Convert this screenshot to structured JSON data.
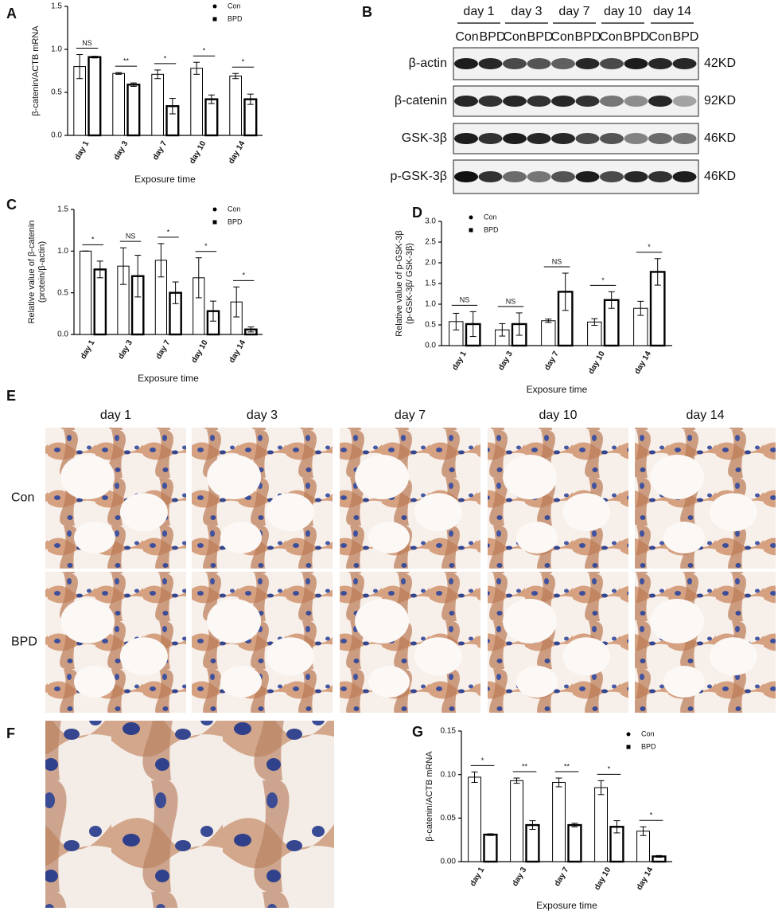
{
  "chart_data": [
    {
      "type": "bar",
      "panel": "A",
      "ylabel": [
        "β-catenin/ACTB mRNA"
      ],
      "xlabel": "Exposure time",
      "categories": [
        "day 1",
        "day 3",
        "day 7",
        "day 10",
        "day 14"
      ],
      "series": [
        {
          "name": "Con",
          "color": "#000000",
          "marker": "circle",
          "values": [
            0.8,
            0.72,
            0.71,
            0.78,
            0.69
          ],
          "errors": [
            0.14,
            0.01,
            0.05,
            0.07,
            0.03
          ]
        },
        {
          "name": "BPD",
          "color": "#000000",
          "marker": "square",
          "values": [
            0.91,
            0.59,
            0.34,
            0.42,
            0.42
          ],
          "errors": [
            0.01,
            0.02,
            0.09,
            0.05,
            0.06
          ]
        }
      ],
      "significance": [
        "NS",
        "**",
        "*",
        "*",
        "*"
      ],
      "ylim": [
        0,
        1.5
      ],
      "yticks": [
        {
          "value": 0,
          "label": "0.0"
        },
        {
          "value": 0.5,
          "label": "0.5"
        },
        {
          "value": 1,
          "label": "1.0"
        },
        {
          "value": 1.5,
          "label": "1.5"
        }
      ]
    },
    {
      "type": "bar",
      "panel": "C",
      "ylabel": [
        "Relative value of β-catenin",
        "(protein/β-actin)"
      ],
      "xlabel": "Exposure time",
      "categories": [
        "day 1",
        "day 3",
        "day 7",
        "day 10",
        "day 14"
      ],
      "series": [
        {
          "name": "Con",
          "color": "#000000",
          "marker": "circle",
          "values": [
            1.0,
            0.82,
            0.89,
            0.68,
            0.39
          ],
          "errors": [
            0.0,
            0.22,
            0.2,
            0.24,
            0.18
          ]
        },
        {
          "name": "BPD",
          "color": "#000000",
          "marker": "square",
          "values": [
            0.78,
            0.7,
            0.5,
            0.28,
            0.06
          ],
          "errors": [
            0.1,
            0.25,
            0.13,
            0.12,
            0.03
          ]
        }
      ],
      "significance": [
        "*",
        "NS",
        "*",
        "*",
        "*"
      ],
      "ylim": [
        0,
        1.5
      ],
      "yticks": [
        {
          "value": 0,
          "label": "0.0"
        },
        {
          "value": 0.5,
          "label": "0.5"
        },
        {
          "value": 1,
          "label": "1.0"
        },
        {
          "value": 1.5,
          "label": "1.5"
        }
      ]
    },
    {
      "type": "bar",
      "panel": "D",
      "ylabel": [
        "Relative value of p-GSK-3β",
        "(p-GSK-3β/ GSK-3β)"
      ],
      "xlabel": "Exposure time",
      "categories": [
        "day 1",
        "day 3",
        "day 7",
        "day 10",
        "day 14"
      ],
      "series": [
        {
          "name": "Con",
          "color": "#000000",
          "marker": "circle",
          "values": [
            0.58,
            0.38,
            0.6,
            0.57,
            0.9
          ],
          "errors": [
            0.2,
            0.15,
            0.04,
            0.08,
            0.17
          ]
        },
        {
          "name": "BPD",
          "color": "#000000",
          "marker": "square",
          "values": [
            0.52,
            0.52,
            1.3,
            1.1,
            1.78
          ],
          "errors": [
            0.3,
            0.27,
            0.45,
            0.2,
            0.32
          ]
        }
      ],
      "significance": [
        "NS",
        "NS",
        "NS",
        "*",
        "*"
      ],
      "ylim": [
        0,
        3
      ],
      "yticks": [
        {
          "value": 0,
          "label": "0.0"
        },
        {
          "value": 0.5,
          "label": "0.5"
        },
        {
          "value": 1,
          "label": "1.0"
        },
        {
          "value": 1.5,
          "label": "1.5"
        },
        {
          "value": 2,
          "label": "2.0"
        },
        {
          "value": 2.5,
          "label": "2.5"
        },
        {
          "value": 3,
          "label": "3.0"
        }
      ]
    },
    {
      "type": "bar",
      "panel": "G",
      "ylabel": [
        "β-catenin/ACTB mRNA"
      ],
      "xlabel": "Exposure time",
      "categories": [
        "day 1",
        "day 3",
        "day 7",
        "day 10",
        "day 14"
      ],
      "series": [
        {
          "name": "Con",
          "color": "#000000",
          "marker": "circle",
          "values": [
            0.097,
            0.093,
            0.091,
            0.085,
            0.035
          ],
          "errors": [
            0.006,
            0.003,
            0.005,
            0.008,
            0.005
          ]
        },
        {
          "name": "BPD",
          "color": "#000000",
          "marker": "square",
          "values": [
            0.031,
            0.042,
            0.042,
            0.04,
            0.006
          ],
          "errors": [
            0.001,
            0.005,
            0.002,
            0.007,
            0.001
          ]
        }
      ],
      "significance": [
        "*",
        "**",
        "**",
        "*",
        "*"
      ],
      "ylim": [
        0,
        0.15
      ],
      "yticks": [
        {
          "value": 0,
          "label": "0.00"
        },
        {
          "value": 0.05,
          "label": "0.05"
        },
        {
          "value": 0.1,
          "label": "0.10"
        },
        {
          "value": 0.15,
          "label": "0.15"
        }
      ]
    }
  ],
  "blot": {
    "panel": "B",
    "days": [
      "day 1",
      "day 3",
      "day 7",
      "day 10",
      "day 14"
    ],
    "groups": [
      "Con",
      "BPD"
    ],
    "rows": [
      {
        "protein": "β-actin",
        "size": "42KD"
      },
      {
        "protein": "β-catenin",
        "size": "92KD"
      },
      {
        "protein": "GSK-3β",
        "size": "46KD"
      },
      {
        "protein": "p-GSK-3β",
        "size": "46KD"
      }
    ]
  },
  "histology": {
    "panel": "E",
    "columns": [
      "day 1",
      "day 3",
      "day 7",
      "day 10",
      "day 14"
    ],
    "rows": [
      "Con",
      "BPD"
    ]
  },
  "magnified": {
    "panel": "F"
  }
}
